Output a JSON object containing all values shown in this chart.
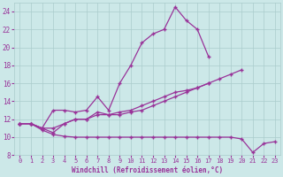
{
  "xlabel": "Windchill (Refroidissement éolien,°C)",
  "background_color": "#cce8e8",
  "grid_color": "#aacccc",
  "line_color": "#993399",
  "x": [
    0,
    1,
    2,
    3,
    4,
    5,
    6,
    7,
    8,
    9,
    10,
    11,
    12,
    13,
    14,
    15,
    16,
    17,
    18,
    19,
    20,
    21,
    22,
    23
  ],
  "line1": [
    11.5,
    11.5,
    10.8,
    10.3,
    10.1,
    10.0,
    10.0,
    10.0,
    10.0,
    10.0,
    10.0,
    10.0,
    10.0,
    10.0,
    10.0,
    10.0,
    10.0,
    10.0,
    10.0,
    10.0,
    9.8,
    8.3,
    9.3,
    9.5
  ],
  "line2": [
    11.5,
    11.5,
    11.0,
    10.5,
    11.5,
    12.0,
    12.0,
    12.5,
    12.5,
    12.5,
    12.8,
    13.0,
    13.5,
    14.0,
    14.5,
    15.0,
    15.5,
    16.0,
    16.5,
    17.0,
    17.5,
    null,
    null,
    null
  ],
  "line3": [
    11.5,
    11.5,
    11.0,
    11.0,
    11.5,
    12.0,
    12.0,
    12.8,
    12.5,
    12.8,
    13.0,
    13.5,
    14.0,
    14.5,
    15.0,
    15.2,
    15.5,
    16.0,
    null,
    null,
    null,
    null,
    null,
    null
  ],
  "line4": [
    11.5,
    11.5,
    11.0,
    13.0,
    13.0,
    12.8,
    13.0,
    14.5,
    13.0,
    16.0,
    18.0,
    20.5,
    21.5,
    22.0,
    24.5,
    23.0,
    22.0,
    19.0,
    null,
    null,
    null,
    null,
    null,
    null
  ],
  "ylim": [
    8,
    25
  ],
  "xlim": [
    -0.5,
    23.5
  ],
  "yticks": [
    8,
    10,
    12,
    14,
    16,
    18,
    20,
    22,
    24
  ],
  "xticks": [
    0,
    1,
    2,
    3,
    4,
    5,
    6,
    7,
    8,
    9,
    10,
    11,
    12,
    13,
    14,
    15,
    16,
    17,
    18,
    19,
    20,
    21,
    22,
    23
  ]
}
